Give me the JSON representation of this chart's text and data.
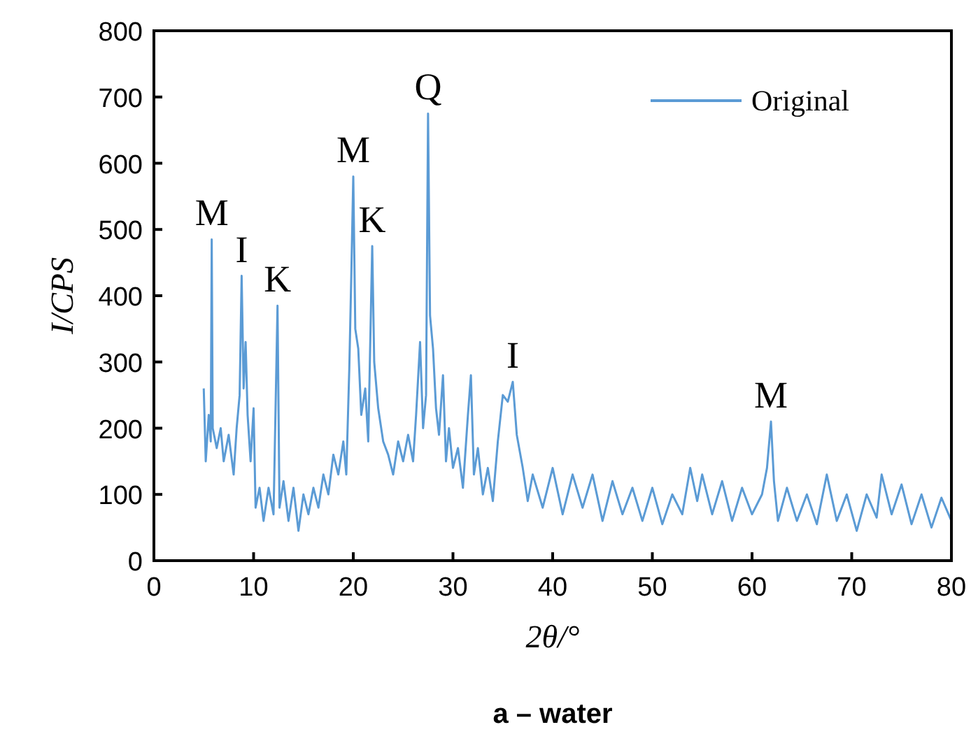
{
  "chart_data": {
    "type": "line",
    "title": "a – water",
    "xlabel": "2θ/°",
    "ylabel": "I/CPS",
    "x": [
      5.0,
      5.2,
      5.5,
      5.7,
      5.8,
      5.9,
      6.3,
      6.7,
      7.0,
      7.5,
      8.0,
      8.3,
      8.6,
      8.8,
      9.0,
      9.2,
      9.4,
      9.7,
      10.0,
      10.2,
      10.6,
      11.0,
      11.5,
      12.0,
      12.4,
      12.6,
      13.0,
      13.5,
      14.0,
      14.5,
      15.0,
      15.5,
      16.0,
      16.5,
      17.0,
      17.5,
      18.0,
      18.5,
      19.0,
      19.3,
      19.6,
      19.8,
      20.0,
      20.2,
      20.5,
      20.8,
      21.2,
      21.5,
      21.9,
      22.1,
      22.5,
      23.0,
      23.5,
      24.0,
      24.5,
      25.0,
      25.5,
      26.0,
      26.3,
      26.7,
      27.0,
      27.3,
      27.5,
      27.7,
      28.0,
      28.3,
      28.6,
      29.0,
      29.3,
      29.6,
      30.0,
      30.5,
      31.0,
      31.5,
      31.8,
      32.1,
      32.5,
      33.0,
      33.5,
      34.0,
      34.5,
      35.0,
      35.5,
      36.0,
      36.4,
      37.0,
      37.5,
      38.0,
      39.0,
      40.0,
      41.0,
      42.0,
      43.0,
      44.0,
      45.0,
      46.0,
      47.0,
      48.0,
      49.0,
      50.0,
      51.0,
      52.0,
      53.0,
      53.8,
      54.5,
      55.0,
      56.0,
      57.0,
      58.0,
      59.0,
      60.0,
      61.0,
      61.5,
      61.9,
      62.2,
      62.6,
      63.5,
      64.5,
      65.5,
      66.5,
      67.5,
      68.5,
      69.5,
      70.5,
      71.5,
      72.5,
      73.0,
      74.0,
      75.0,
      76.0,
      77.0,
      78.0,
      79.0,
      80.0
    ],
    "series": [
      {
        "name": "Original",
        "color": "#5b9bd5",
        "values": [
          260,
          150,
          220,
          180,
          485,
          200,
          170,
          200,
          150,
          190,
          130,
          200,
          250,
          430,
          260,
          330,
          220,
          150,
          230,
          80,
          110,
          60,
          110,
          70,
          385,
          80,
          120,
          60,
          110,
          45,
          100,
          70,
          110,
          80,
          130,
          100,
          160,
          130,
          180,
          130,
          290,
          430,
          580,
          350,
          320,
          220,
          260,
          180,
          475,
          300,
          230,
          180,
          160,
          130,
          180,
          150,
          190,
          150,
          220,
          330,
          200,
          250,
          675,
          370,
          320,
          230,
          190,
          280,
          150,
          200,
          140,
          170,
          110,
          220,
          280,
          130,
          170,
          100,
          140,
          90,
          180,
          250,
          240,
          270,
          190,
          140,
          90,
          130,
          80,
          140,
          70,
          130,
          80,
          130,
          60,
          120,
          70,
          110,
          60,
          110,
          55,
          100,
          70,
          140,
          90,
          130,
          70,
          120,
          60,
          110,
          70,
          100,
          140,
          210,
          120,
          60,
          110,
          60,
          100,
          55,
          130,
          60,
          100,
          45,
          100,
          65,
          130,
          70,
          115,
          55,
          100,
          50,
          95,
          60
        ]
      }
    ],
    "xlim": [
      0,
      80
    ],
    "xticks": [
      0,
      10,
      20,
      30,
      40,
      50,
      60,
      70,
      80
    ],
    "ylim": [
      0,
      800
    ],
    "yticks": [
      0,
      100,
      200,
      300,
      400,
      500,
      600,
      700,
      800
    ],
    "annotations": [
      {
        "text": "M",
        "x": 5.8,
        "y": 485
      },
      {
        "text": "I",
        "x": 8.8,
        "y": 430
      },
      {
        "text": "K",
        "x": 12.4,
        "y": 385
      },
      {
        "text": "M",
        "x": 20.0,
        "y": 580
      },
      {
        "text": "K",
        "x": 21.9,
        "y": 475
      },
      {
        "text": "Q",
        "x": 27.5,
        "y": 675
      },
      {
        "text": "I",
        "x": 36.0,
        "y": 270
      },
      {
        "text": "M",
        "x": 61.9,
        "y": 210
      }
    ],
    "legend": "top right",
    "grid": false,
    "line_style": "solid",
    "marker": "none"
  }
}
